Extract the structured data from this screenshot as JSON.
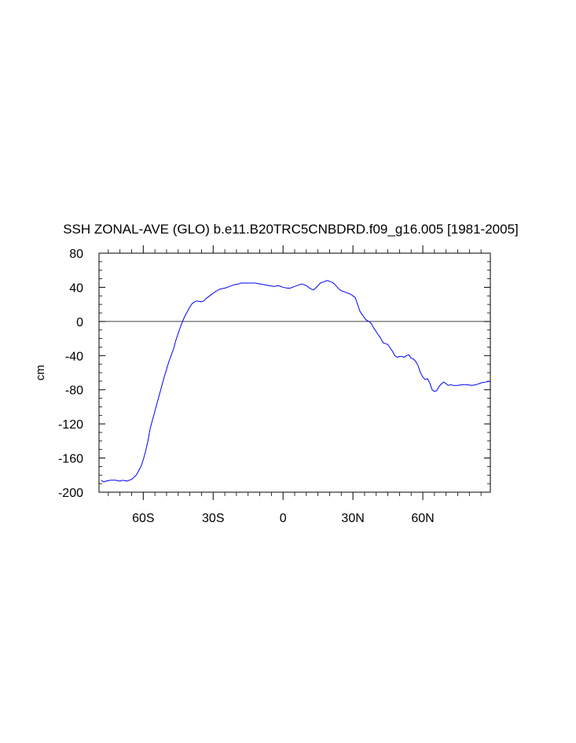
{
  "chart_data": {
    "type": "line",
    "title": "SSH ZONAL-AVE (GLO) b.e11.B20TRC5CNBDRD.f09_g16.005 [1981-2005]",
    "xlabel": "",
    "ylabel": "cm",
    "xlim": [
      -79,
      89
    ],
    "ylim": [
      -200,
      80
    ],
    "x_ticks": [
      {
        "value": -60,
        "label": "60S"
      },
      {
        "value": -30,
        "label": "30S"
      },
      {
        "value": 0,
        "label": "0"
      },
      {
        "value": 30,
        "label": "30N"
      },
      {
        "value": 60,
        "label": "60N"
      }
    ],
    "y_ticks": [
      {
        "value": 80,
        "label": "80"
      },
      {
        "value": 40,
        "label": "40"
      },
      {
        "value": 0,
        "label": "0"
      },
      {
        "value": -40,
        "label": "-40"
      },
      {
        "value": -80,
        "label": "-80"
      },
      {
        "value": -120,
        "label": "-120"
      },
      {
        "value": -160,
        "label": "-160"
      },
      {
        "value": -200,
        "label": "-200"
      }
    ],
    "reference_line": 0,
    "grid": false,
    "line_color": "#0000ff",
    "series": [
      {
        "values": [
          [
            -78,
            -186
          ],
          [
            -77,
            -188
          ],
          [
            -76,
            -187
          ],
          [
            -74,
            -186
          ],
          [
            -72,
            -186
          ],
          [
            -70,
            -187
          ],
          [
            -69,
            -186
          ],
          [
            -67,
            -187
          ],
          [
            -65,
            -185
          ],
          [
            -63,
            -180
          ],
          [
            -62,
            -175
          ],
          [
            -61,
            -170
          ],
          [
            -60,
            -162
          ],
          [
            -59,
            -152
          ],
          [
            -58,
            -140
          ],
          [
            -57,
            -125
          ],
          [
            -55,
            -105
          ],
          [
            -53,
            -85
          ],
          [
            -51,
            -65
          ],
          [
            -49,
            -47
          ],
          [
            -47,
            -32
          ],
          [
            -46,
            -22
          ],
          [
            -45,
            -14
          ],
          [
            -44,
            -6
          ],
          [
            -43,
            1
          ],
          [
            -42,
            7
          ],
          [
            -41,
            12
          ],
          [
            -40,
            17
          ],
          [
            -39,
            21
          ],
          [
            -38,
            23
          ],
          [
            -37,
            24
          ],
          [
            -35,
            23
          ],
          [
            -34,
            24
          ],
          [
            -33,
            27
          ],
          [
            -31,
            31
          ],
          [
            -29,
            35
          ],
          [
            -27,
            38
          ],
          [
            -25,
            39
          ],
          [
            -23,
            41
          ],
          [
            -21,
            43
          ],
          [
            -19,
            44
          ],
          [
            -18,
            45
          ],
          [
            -16,
            45
          ],
          [
            -14,
            45
          ],
          [
            -12,
            45
          ],
          [
            -10,
            44
          ],
          [
            -8,
            43
          ],
          [
            -6,
            42
          ],
          [
            -4,
            41
          ],
          [
            -2,
            42
          ],
          [
            0,
            40
          ],
          [
            2,
            39
          ],
          [
            3,
            39
          ],
          [
            5,
            41
          ],
          [
            7,
            43
          ],
          [
            8,
            44
          ],
          [
            9,
            43
          ],
          [
            10,
            42
          ],
          [
            11,
            40
          ],
          [
            12,
            38
          ],
          [
            13,
            37
          ],
          [
            14,
            39
          ],
          [
            15,
            42
          ],
          [
            16,
            45
          ],
          [
            17,
            46
          ],
          [
            18,
            47
          ],
          [
            19,
            48
          ],
          [
            20,
            47
          ],
          [
            21,
            46
          ],
          [
            22,
            44
          ],
          [
            23,
            41
          ],
          [
            24,
            38
          ],
          [
            25,
            36
          ],
          [
            27,
            34
          ],
          [
            29,
            32
          ],
          [
            30,
            30
          ],
          [
            31,
            28
          ],
          [
            32,
            20
          ],
          [
            33,
            12
          ],
          [
            34,
            8
          ],
          [
            35,
            4
          ],
          [
            36,
            1
          ],
          [
            37,
            0
          ],
          [
            38,
            -3
          ],
          [
            39,
            -8
          ],
          [
            40,
            -12
          ],
          [
            41,
            -16
          ],
          [
            42,
            -20
          ],
          [
            43,
            -25
          ],
          [
            44,
            -26
          ],
          [
            45,
            -27
          ],
          [
            46,
            -31
          ],
          [
            47,
            -35
          ],
          [
            48,
            -40
          ],
          [
            49,
            -42
          ],
          [
            50,
            -41
          ],
          [
            51,
            -41
          ],
          [
            52,
            -42
          ],
          [
            53,
            -40
          ],
          [
            54,
            -39
          ],
          [
            55,
            -43
          ],
          [
            56,
            -44
          ],
          [
            57,
            -47
          ],
          [
            58,
            -52
          ],
          [
            59,
            -60
          ],
          [
            60,
            -65
          ],
          [
            61,
            -68
          ],
          [
            62,
            -67
          ],
          [
            63,
            -72
          ],
          [
            64,
            -80
          ],
          [
            65,
            -82
          ],
          [
            66,
            -81
          ],
          [
            67,
            -76
          ],
          [
            68,
            -73
          ],
          [
            69,
            -71
          ],
          [
            70,
            -73
          ],
          [
            71,
            -75
          ],
          [
            72,
            -74
          ],
          [
            73,
            -75
          ],
          [
            75,
            -75
          ],
          [
            77,
            -74
          ],
          [
            79,
            -74
          ],
          [
            81,
            -75
          ],
          [
            83,
            -74
          ],
          [
            85,
            -72
          ],
          [
            87,
            -71
          ],
          [
            89,
            -70
          ]
        ]
      }
    ]
  }
}
